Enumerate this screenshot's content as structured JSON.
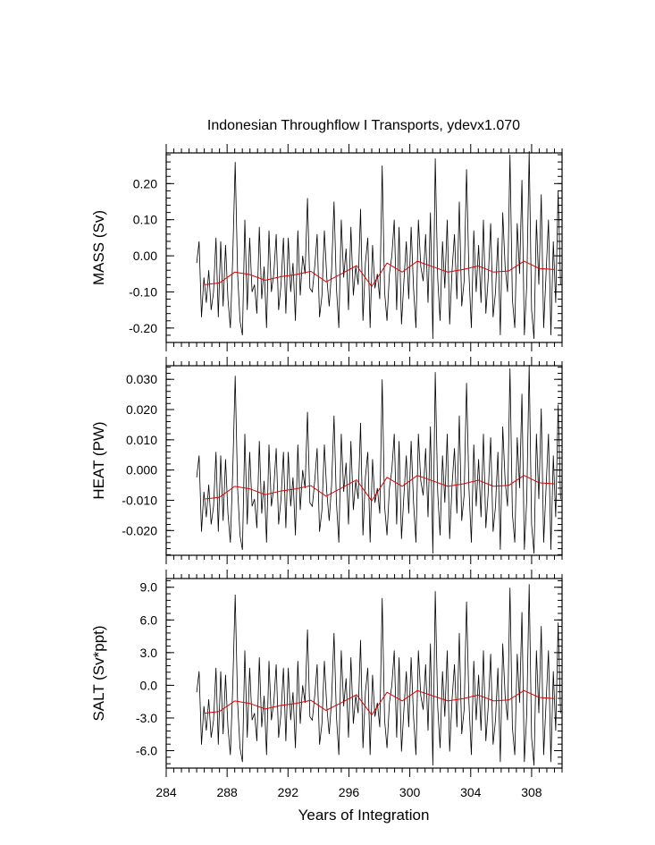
{
  "chart_data": {
    "type": "line",
    "title": "Indonesian Throughflow I Transports, ydevx1.070",
    "xlabel": "Years of Integration",
    "xlim": [
      284,
      310
    ],
    "xticks": [
      284,
      288,
      292,
      296,
      300,
      304,
      308
    ],
    "colors": {
      "monthly": "#000000",
      "annual": "#e00000"
    },
    "annual_x": [
      286.5,
      287.5,
      288.5,
      289.5,
      290.5,
      291.5,
      292.5,
      293.5,
      294.5,
      295.5,
      296.5,
      297.5,
      298.5,
      299.5,
      300.5,
      301.5,
      302.5,
      303.5,
      304.5,
      305.5,
      306.5,
      307.5,
      308.5,
      309.5
    ],
    "annual_shape": [
      -0.08,
      -0.075,
      -0.045,
      -0.052,
      -0.068,
      -0.058,
      -0.052,
      -0.043,
      -0.072,
      -0.05,
      -0.027,
      -0.085,
      -0.02,
      -0.045,
      -0.015,
      -0.03,
      -0.045,
      -0.038,
      -0.028,
      -0.045,
      -0.042,
      -0.015,
      -0.035,
      -0.038
    ],
    "monthly_shape": [
      -0.02,
      0.04,
      -0.17,
      -0.06,
      -0.13,
      -0.04,
      -0.15,
      -0.1,
      0.05,
      -0.17,
      0.04,
      -0.14,
      0.03,
      -0.12,
      -0.2,
      0.0,
      0.26,
      -0.05,
      -0.18,
      -0.22,
      0.1,
      -0.15,
      0.05,
      -0.1,
      -0.08,
      -0.16,
      0.08,
      -0.12,
      -0.03,
      -0.2,
      0.07,
      -0.1,
      -0.05,
      0.06,
      -0.15,
      -0.08,
      0.05,
      -0.16,
      0.05,
      -0.1,
      -0.02,
      -0.18,
      0.07,
      -0.11,
      0.0,
      -0.05,
      0.16,
      -0.09,
      -0.1,
      -0.03,
      0.06,
      -0.17,
      -0.11,
      0.07,
      -0.06,
      -0.14,
      -0.04,
      0.15,
      -0.09,
      -0.2,
      0.1,
      -0.06,
      0.02,
      -0.15,
      0.08,
      -0.11,
      -0.03,
      -0.08,
      0.13,
      -0.18,
      -0.02,
      0.05,
      -0.2,
      0.03,
      -0.09,
      -0.05,
      -0.12,
      0.25,
      -0.1,
      -0.18,
      -0.05,
      0.0,
      0.1,
      -0.15,
      0.08,
      -0.19,
      -0.07,
      0.04,
      -0.12,
      0.08,
      -0.09,
      -0.2,
      0.1,
      -0.03,
      -0.07,
      0.06,
      -0.13,
      0.12,
      -0.23,
      0.27,
      -0.06,
      -0.18,
      0.04,
      -0.09,
      0.1,
      -0.19,
      -0.04,
      0.06,
      -0.12,
      0.15,
      -0.14,
      -0.07,
      0.24,
      -0.05,
      -0.2,
      0.07,
      -0.1,
      0.03,
      -0.13,
      0.1,
      -0.16,
      -0.06,
      0.09,
      -0.17,
      -0.1,
      0.05,
      -0.22,
      0.12,
      -0.03,
      -0.1,
      0.28,
      -0.12,
      -0.2,
      0.09,
      -0.05,
      0.21,
      -0.22,
      -0.08,
      0.29,
      -0.15,
      -0.23,
      0.1,
      -0.08,
      0.17,
      -0.2,
      -0.05,
      0.1,
      -0.22,
      0.04,
      -0.13,
      0.18,
      -0.08
    ],
    "panels": [
      {
        "ylabel": "MASS (Sv)",
        "ylim": [
          -0.24,
          0.285
        ],
        "yticks": [
          -0.2,
          -0.1,
          0.0,
          0.1,
          0.2
        ],
        "ytick_labels": [
          "-0.20",
          "-0.10",
          "0.00",
          "0.10",
          "0.20"
        ],
        "scale": 1.0
      },
      {
        "ylabel": "HEAT (PW)",
        "ylim": [
          -0.0282,
          0.0345
        ],
        "yticks": [
          -0.02,
          -0.01,
          0.0,
          0.01,
          0.02,
          0.03
        ],
        "ytick_labels": [
          "-0.020",
          "-0.010",
          "0.000",
          "0.010",
          "0.020",
          "0.030"
        ],
        "scale": 0.12
      },
      {
        "ylabel": "SALT (Sv*ppt)",
        "ylim": [
          -7.6,
          9.8
        ],
        "yticks": [
          -6.0,
          -3.0,
          0.0,
          3.0,
          6.0,
          9.0
        ],
        "ytick_labels": [
          "-6.0",
          "-3.0",
          "0.0",
          "3.0",
          "6.0",
          "9.0"
        ],
        "scale": 32.0
      }
    ]
  }
}
